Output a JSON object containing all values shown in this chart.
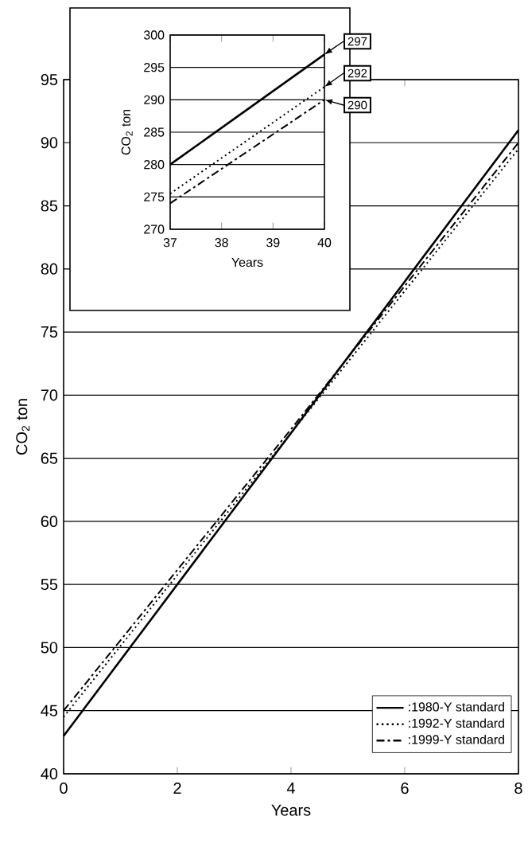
{
  "chart_data": [
    {
      "type": "line",
      "xlabel": "Years",
      "ylabel": "CO$_{2}$ ton",
      "xlim": [
        0,
        8
      ],
      "xticks": [
        0,
        2,
        4,
        6,
        8
      ],
      "ylim": [
        40,
        95
      ],
      "yticks": [
        40,
        45,
        50,
        55,
        60,
        65,
        70,
        75,
        80,
        85,
        90,
        95
      ],
      "grid": "y",
      "legend": "bottom right",
      "marker": "none",
      "series": [
        {
          "name": ":1980-Y standard",
          "color": "#000000",
          "line_style": "solid",
          "x": [
            0,
            4,
            8
          ],
          "values": [
            43,
            67,
            91
          ]
        },
        {
          "name": ":1992-Y standard",
          "color": "#000000",
          "line_style": "dotted",
          "x": [
            0,
            4,
            8
          ],
          "values": [
            44.5,
            67,
            89.5
          ]
        },
        {
          "name": ":1999-Y standard",
          "color": "#000000",
          "line_style": "dashdot",
          "x": [
            0,
            4,
            8
          ],
          "values": [
            45,
            67.3,
            90
          ]
        }
      ]
    },
    {
      "type": "line",
      "xlabel": "Years",
      "ylabel": "CO$_{2}$ ton",
      "xlim": [
        37,
        40
      ],
      "xticks": [
        37,
        38,
        39,
        40
      ],
      "ylim": [
        270,
        300
      ],
      "yticks": [
        270,
        275,
        280,
        285,
        290,
        295,
        300
      ],
      "grid": "y",
      "marker": "none",
      "series": [
        {
          "color": "#000000",
          "line_style": "solid",
          "x": [
            37,
            40
          ],
          "values": [
            280,
            297
          ]
        },
        {
          "color": "#000000",
          "line_style": "dotted",
          "x": [
            37,
            40
          ],
          "values": [
            275.5,
            292
          ]
        },
        {
          "color": "#000000",
          "line_style": "dashdot",
          "x": [
            37,
            40
          ],
          "values": [
            274,
            290
          ]
        }
      ],
      "annotations": [
        "297",
        "292",
        "290"
      ]
    }
  ]
}
